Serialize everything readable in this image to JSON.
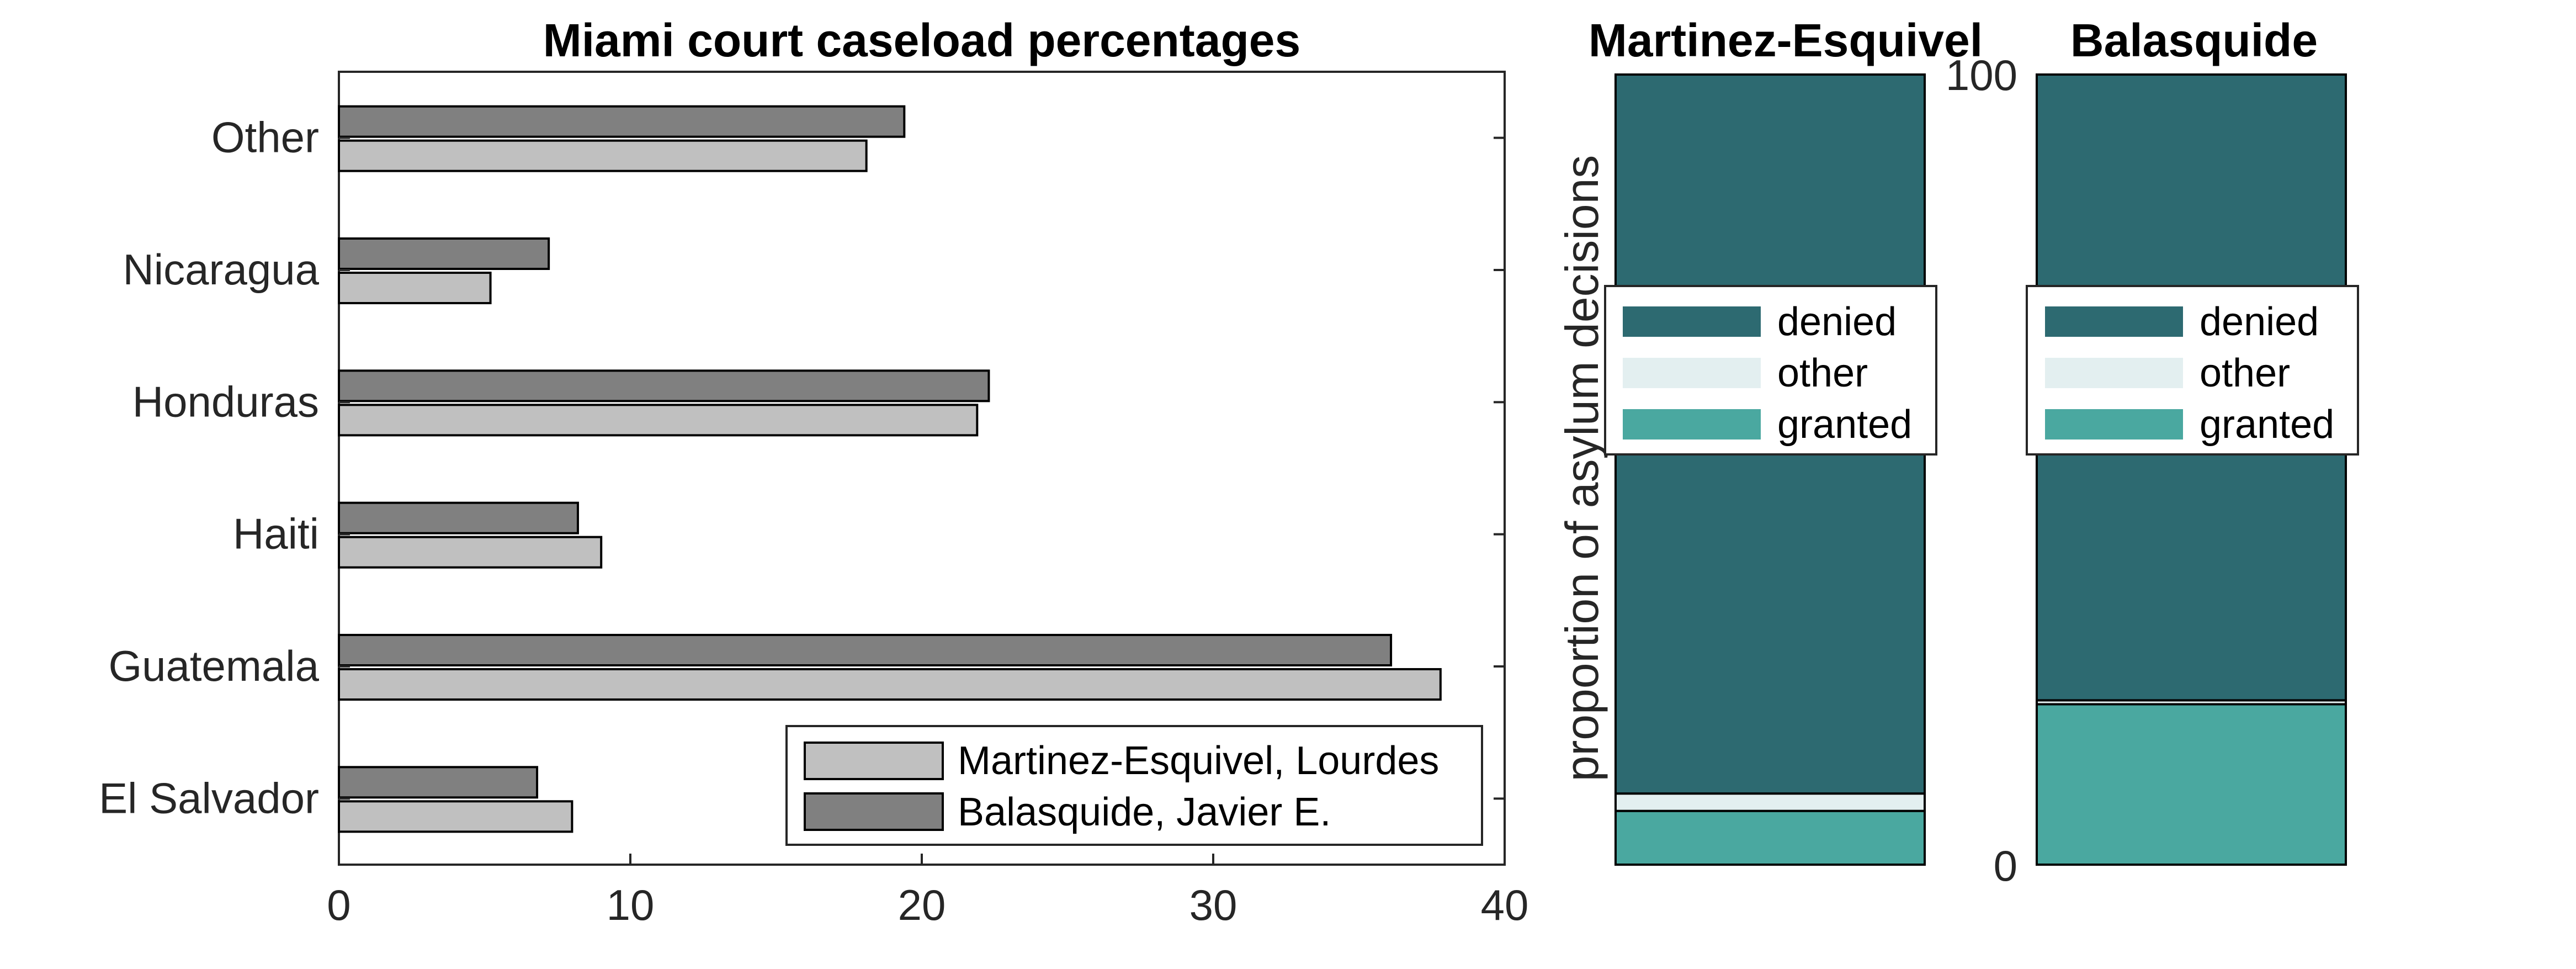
{
  "colors": {
    "background": "#ffffff",
    "axis": "#262626",
    "martinez_bar": "#c0c0c0",
    "balasquide_bar": "#808080",
    "denied": "#2d6a71",
    "other": "#e3eff0",
    "granted": "#4aa8a0"
  },
  "chart_data": [
    {
      "type": "bar",
      "orientation": "horizontal",
      "title": "Miami court caseload percentages",
      "xlabel": "",
      "ylabel": "",
      "categories": [
        "El Salvador",
        "Guatemala",
        "Haiti",
        "Honduras",
        "Nicaragua",
        "Other"
      ],
      "xlim": [
        0,
        40
      ],
      "xticks": [
        "0",
        "10",
        "20",
        "30",
        "40"
      ],
      "series": [
        {
          "name": "Martinez-Esquivel, Lourdes",
          "values": [
            8.0,
            37.8,
            9.0,
            21.9,
            5.2,
            18.1
          ]
        },
        {
          "name": "Balasquide, Javier E.",
          "values": [
            6.8,
            36.1,
            8.2,
            22.3,
            7.2,
            19.4
          ]
        }
      ],
      "legend_position": "bottom-right",
      "grid": false
    },
    {
      "type": "bar",
      "stacked": true,
      "title": "Martinez-Esquivel",
      "ylabel": "proportion of asylum decisions",
      "ylim": [
        0,
        100
      ],
      "series": [
        {
          "name": "granted",
          "value": 6.8
        },
        {
          "name": "other",
          "value": 2.2
        },
        {
          "name": "denied",
          "value": 91.0
        }
      ],
      "legend": [
        "denied",
        "other",
        "granted"
      ],
      "legend_position": "top"
    },
    {
      "type": "bar",
      "stacked": true,
      "title": "Balasquide",
      "ylim": [
        0,
        100
      ],
      "yticks": [
        "0",
        "100"
      ],
      "series": [
        {
          "name": "granted",
          "value": 20.3
        },
        {
          "name": "other",
          "value": 0.5
        },
        {
          "name": "denied",
          "value": 79.2
        }
      ],
      "legend": [
        "denied",
        "other",
        "granted"
      ],
      "legend_position": "top"
    }
  ]
}
